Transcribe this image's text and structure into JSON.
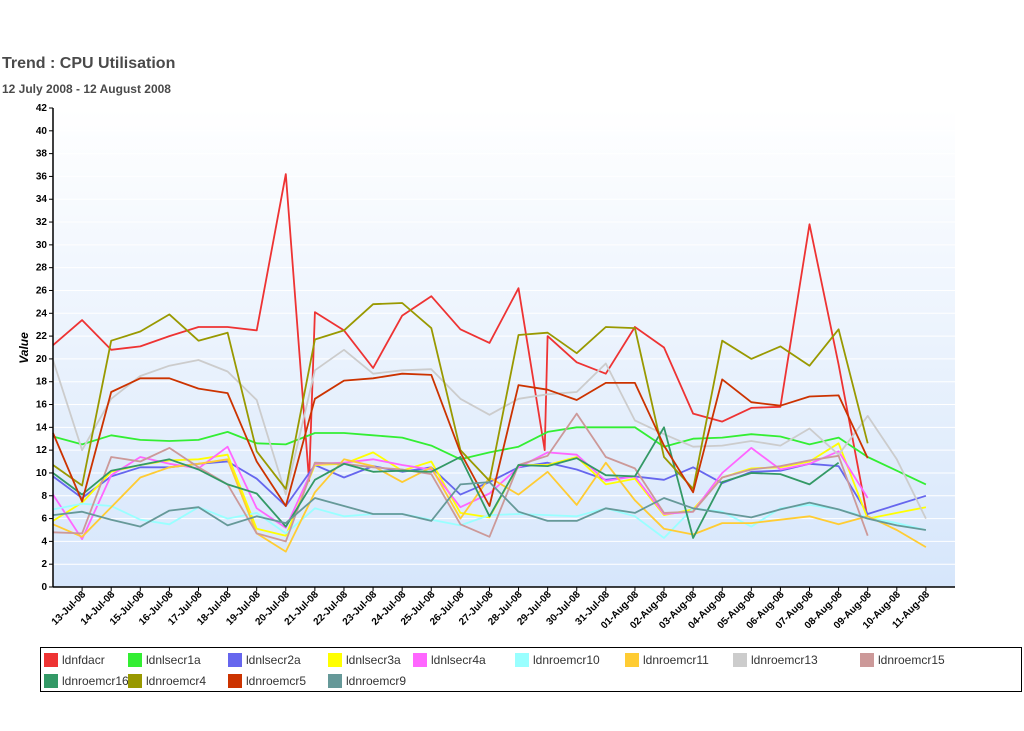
{
  "chart_data": {
    "type": "line",
    "title": "Trend : CPU Utilisation",
    "subtitle": "12 July 2008 - 12 August 2008",
    "ylabel": "Value",
    "xlabel": "",
    "ylim": [
      0,
      42
    ],
    "yticks": [
      0,
      2,
      4,
      6,
      8,
      10,
      12,
      14,
      16,
      18,
      20,
      22,
      24,
      26,
      28,
      30,
      32,
      34,
      36,
      38,
      40,
      42
    ],
    "grid": true,
    "legend_position": "bottom",
    "categories": [
      "13-Jul-08",
      "14-Jul-08",
      "15-Jul-08",
      "16-Jul-08",
      "17-Jul-08",
      "18-Jul-08",
      "19-Jul-08",
      "20-Jul-08",
      "21-Jul-08",
      "22-Jul-08",
      "23-Jul-08",
      "24-Jul-08",
      "25-Jul-08",
      "26-Jul-08",
      "27-Jul-08",
      "28-Jul-08",
      "29-Jul-08",
      "30-Jul-08",
      "31-Jul-08",
      "01-Aug-08",
      "02-Aug-08",
      "03-Aug-08",
      "04-Aug-08",
      "05-Aug-08",
      "06-Aug-08",
      "07-Aug-08",
      "08-Aug-08",
      "09-Aug-08",
      "10-Aug-08",
      "11-Aug-08"
    ],
    "x": [
      12,
      13,
      13.7,
      14,
      15,
      16,
      17,
      18,
      19,
      20,
      20.7,
      21,
      22,
      23,
      24,
      25,
      26,
      27,
      28,
      29,
      30,
      30.7,
      31,
      32,
      33,
      34,
      35,
      36,
      37,
      38,
      39,
      40,
      41,
      42
    ],
    "series": [
      {
        "name": "ldnfdacr",
        "color": "#ee3333",
        "x": [
          12,
          13,
          14,
          15,
          16,
          17,
          18,
          19,
          20,
          20.8,
          21,
          22,
          23,
          24,
          25,
          26,
          27,
          28,
          28.9,
          29,
          30,
          31,
          32,
          33,
          34,
          35,
          36,
          37,
          38,
          39,
          40,
          41,
          42
        ],
        "values": [
          21.2,
          23.4,
          20.8,
          21.1,
          22,
          22.8,
          22.8,
          22.5,
          36.2,
          9.3,
          24.1,
          22.5,
          19.2,
          23.8,
          25.5,
          22.6,
          21.4,
          26.2,
          12,
          22,
          19.7,
          18.7,
          22.8,
          21,
          15.2,
          14.5,
          15.7,
          15.8,
          31.8,
          19.5,
          6,
          null,
          null
        ]
      },
      {
        "name": "ldnlsecr1a",
        "color": "#33ee33",
        "x": [
          12,
          13,
          14,
          15,
          16,
          17,
          18,
          19,
          20,
          21,
          22,
          23,
          24,
          25,
          26,
          27,
          28,
          29,
          30,
          31,
          32,
          33,
          34,
          35,
          36,
          37,
          38,
          39,
          40,
          41,
          42
        ],
        "values": [
          13.2,
          12.5,
          13.3,
          12.9,
          12.8,
          12.9,
          13.6,
          12.6,
          12.5,
          13.5,
          13.5,
          13.3,
          13.1,
          12.4,
          11.2,
          11.8,
          12.3,
          13.6,
          14,
          14,
          14,
          12.3,
          13,
          13.1,
          13.4,
          13.2,
          12.5,
          13.1,
          11.4,
          10.2,
          9
        ]
      },
      {
        "name": "ldnlsecr2a",
        "color": "#6666ee",
        "x": [
          12,
          13,
          14,
          15,
          16,
          17,
          18,
          19,
          20,
          21,
          22,
          23,
          24,
          25,
          26,
          27,
          28,
          29,
          30,
          31,
          32,
          33,
          34,
          35,
          36,
          37,
          38,
          39,
          40,
          41,
          42
        ],
        "values": [
          9.7,
          7.8,
          9.7,
          10.5,
          10.5,
          10.8,
          11,
          9.5,
          7.1,
          10.7,
          9.6,
          10.6,
          10.1,
          10.5,
          8.1,
          9.2,
          10.5,
          10.9,
          10.3,
          9.4,
          9.7,
          9.4,
          10.5,
          9.1,
          10.1,
          10.2,
          10.8,
          10.6,
          6.4,
          7.2,
          8
        ]
      },
      {
        "name": "ldnlsecr3a",
        "color": "#ffff00",
        "x": [
          12,
          13,
          14,
          15,
          16,
          17,
          18,
          19,
          20,
          21,
          22,
          23,
          24,
          25,
          26,
          27,
          28,
          29,
          30,
          31,
          32,
          33,
          34,
          35,
          36,
          37,
          38,
          39,
          40,
          41,
          42
        ],
        "values": [
          5.8,
          7.4,
          10.1,
          10.7,
          11.1,
          11.2,
          11.6,
          5.1,
          4.5,
          10.7,
          10.8,
          11.8,
          10.2,
          11,
          6.5,
          6.1,
          10.7,
          10.7,
          11.4,
          9,
          9.5,
          6.3,
          6.8,
          9.6,
          10.4,
          10.5,
          11,
          12.6,
          6,
          6.5,
          7
        ]
      },
      {
        "name": "ldnlsecr4a",
        "color": "#ff66ff",
        "x": [
          12,
          13,
          14,
          15,
          16,
          17,
          18,
          19,
          20,
          21,
          22,
          23,
          24,
          25,
          26,
          27,
          28,
          29,
          30,
          31,
          32,
          33,
          34,
          35,
          36,
          37,
          38,
          39,
          40,
          41,
          42
        ],
        "values": [
          8.1,
          4.2,
          9.8,
          11.4,
          10.8,
          10.4,
          12.3,
          6.9,
          5.2,
          10.8,
          10.9,
          11.2,
          10.7,
          10.3,
          7,
          8.2,
          10.5,
          11.8,
          11.6,
          9.3,
          9.7,
          6.4,
          6.6,
          10,
          12.2,
          10.3,
          10.8,
          11.9,
          7.8,
          null,
          null
        ]
      },
      {
        "name": "ldnroemcr10",
        "color": "#99ffff",
        "x": [
          12,
          13,
          14,
          15,
          16,
          17,
          18,
          19,
          20,
          21,
          22,
          23,
          24,
          25,
          26,
          27,
          28,
          29,
          30,
          31,
          32,
          33,
          34,
          35,
          36,
          37,
          38,
          39,
          40,
          41,
          42
        ],
        "values": [
          6.8,
          7.3,
          7.1,
          5.9,
          5.5,
          7,
          6,
          6.5,
          4.7,
          6.9,
          6.2,
          6.4,
          6.4,
          5.9,
          5.4,
          6.3,
          6.4,
          6.3,
          6.2,
          6.9,
          6.2,
          4.3,
          6.9,
          6.6,
          5.3,
          6.9,
          7.2,
          6.8,
          6.1,
          5.6,
          5
        ]
      },
      {
        "name": "ldnroemcr11",
        "color": "#ffcc33",
        "x": [
          12,
          13,
          14,
          15,
          16,
          17,
          18,
          19,
          20,
          21,
          22,
          23,
          24,
          25,
          26,
          27,
          28,
          29,
          30,
          31,
          32,
          33,
          34,
          35,
          36,
          37,
          38,
          39,
          40,
          41,
          42
        ],
        "values": [
          5.5,
          4.4,
          7,
          9.6,
          10.5,
          10.8,
          11.2,
          4.7,
          3.1,
          8.3,
          11.2,
          10.6,
          9.2,
          10.5,
          6,
          9.6,
          8.1,
          10.1,
          7.2,
          10.9,
          7.6,
          5.1,
          4.6,
          5.6,
          5.6,
          5.9,
          6.2,
          5.5,
          6.2,
          5,
          3.5
        ]
      },
      {
        "name": "ldnroemcr13",
        "color": "#cccccc",
        "x": [
          12,
          13,
          14,
          15,
          16,
          17,
          18,
          19,
          20,
          21,
          22,
          23,
          24,
          25,
          26,
          27,
          28,
          29,
          30,
          31,
          32,
          33,
          34,
          35,
          36,
          37,
          38,
          39,
          40,
          41,
          42
        ],
        "values": [
          19.9,
          12,
          16.5,
          18.5,
          19.4,
          19.9,
          18.9,
          16.4,
          8.1,
          19,
          20.8,
          18.7,
          19,
          19.1,
          16.5,
          15.1,
          16.5,
          16.9,
          17.1,
          19.6,
          14.6,
          13.4,
          12.3,
          12.4,
          12.8,
          12.4,
          13.9,
          11.6,
          15,
          11.2,
          6
        ]
      },
      {
        "name": "ldnroemcr15",
        "color": "#cc9999",
        "x": [
          12,
          13,
          14,
          15,
          16,
          17,
          18,
          19,
          20,
          21,
          22,
          23,
          24,
          25,
          26,
          27,
          28,
          29,
          30,
          31,
          32,
          33,
          34,
          35,
          36,
          37,
          38,
          39,
          40,
          41,
          42
        ],
        "values": [
          4.8,
          4.7,
          11.4,
          11,
          12.2,
          10.5,
          9,
          4.7,
          4,
          10.9,
          10.8,
          10.5,
          10.3,
          9.9,
          5.5,
          4.4,
          10.7,
          11.5,
          15.2,
          11.4,
          10.4,
          6.5,
          6.6,
          9.6,
          10.3,
          10.6,
          11.1,
          11.5,
          4.5,
          null,
          null
        ]
      },
      {
        "name": "ldnroemcr16",
        "color": "#339966",
        "x": [
          12,
          13,
          14,
          15,
          16,
          17,
          18,
          19,
          20,
          21,
          22,
          23,
          24,
          25,
          26,
          27,
          28,
          29,
          30,
          31,
          32,
          33,
          34,
          35,
          36,
          37,
          38,
          39,
          40,
          41,
          42
        ],
        "values": [
          10,
          8.1,
          10.2,
          10.7,
          11.2,
          10.3,
          9,
          8.2,
          5.3,
          9.4,
          10.8,
          10.1,
          10.2,
          10.1,
          11.4,
          6.2,
          10.7,
          10.6,
          11.3,
          9.8,
          9.7,
          14,
          4.3,
          9.2,
          10,
          9.9,
          9,
          10.9,
          null,
          null,
          null
        ]
      },
      {
        "name": "ldnroemcr4",
        "color": "#999900",
        "x": [
          12,
          13,
          14,
          15,
          16,
          17,
          18,
          19,
          20,
          21,
          22,
          23,
          24,
          25,
          26,
          27,
          28,
          29,
          30,
          31,
          32,
          33,
          34,
          35,
          36,
          37,
          38,
          39,
          40,
          41,
          42
        ],
        "values": [
          10.7,
          8.9,
          21.6,
          22.4,
          23.9,
          21.6,
          22.3,
          11.9,
          8.6,
          21.7,
          22.5,
          24.8,
          24.9,
          22.7,
          12,
          9.3,
          22.1,
          22.3,
          20.5,
          22.8,
          22.7,
          11.4,
          8.6,
          21.6,
          20,
          21.1,
          19.4,
          22.6,
          12.6,
          null,
          null
        ]
      },
      {
        "name": "ldnroemcr5",
        "color": "#cc3300",
        "x": [
          12,
          13,
          14,
          15,
          16,
          17,
          18,
          19,
          20,
          21,
          22,
          23,
          24,
          25,
          26,
          27,
          28,
          29,
          30,
          31,
          32,
          33,
          34,
          35,
          36,
          37,
          38,
          39,
          40,
          41,
          42
        ],
        "values": [
          13.5,
          7.5,
          17.1,
          18.3,
          18.3,
          17.4,
          17,
          11,
          7.1,
          16.5,
          18.1,
          18.3,
          18.7,
          18.6,
          11.8,
          7.1,
          17.7,
          17.3,
          16.4,
          17.9,
          17.9,
          12.4,
          8.3,
          18.2,
          16.2,
          15.9,
          16.7,
          16.8,
          11.3,
          null,
          null
        ]
      },
      {
        "name": "ldnroemcr9",
        "color": "#669999",
        "x": [
          12,
          13,
          14,
          15,
          16,
          17,
          18,
          19,
          20,
          21,
          22,
          23,
          24,
          25,
          26,
          27,
          28,
          29,
          30,
          31,
          32,
          33,
          34,
          35,
          36,
          37,
          38,
          39,
          40,
          41,
          42
        ],
        "values": [
          6.3,
          6.6,
          5.9,
          5.3,
          6.7,
          7,
          5.4,
          6.2,
          5.6,
          7.8,
          7.1,
          6.4,
          6.4,
          5.8,
          9,
          9.2,
          6.6,
          5.8,
          5.8,
          6.9,
          6.5,
          7.8,
          6.9,
          6.5,
          6.1,
          6.8,
          7.4,
          6.8,
          6,
          5.4,
          5
        ]
      }
    ]
  }
}
